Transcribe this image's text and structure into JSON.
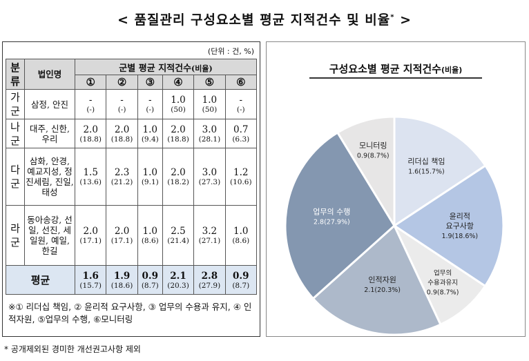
{
  "title": "< 품질관리 구성요소별 평균 지적건수 및 비율",
  "title_mark": "*",
  "title_end": " >",
  "unit": "(단위 : 건, %)",
  "table": {
    "header_group": "분류",
    "header_corp": "법인명",
    "header_span_main": "군별 평균 지적건수",
    "header_span_sub": "(비율)",
    "col_numbers": [
      "①",
      "②",
      "③",
      "④",
      "⑤",
      "⑥"
    ],
    "rows": [
      {
        "group": "가군",
        "corp": "삼정, 안진",
        "values": [
          "-",
          "-",
          "-",
          "1.0",
          "1.0",
          "-"
        ],
        "pcts": [
          "(-)",
          "(-)",
          "(-)",
          "(50)",
          "(50)",
          "(-)"
        ]
      },
      {
        "group": "나군",
        "corp": "대주, 신한, 우리",
        "values": [
          "2.0",
          "2.0",
          "1.0",
          "2.0",
          "3.0",
          "0.7"
        ],
        "pcts": [
          "(18.8)",
          "(18.8)",
          "(9.4)",
          "(18.8)",
          "(28.1)",
          "(6.3)"
        ]
      },
      {
        "group": "다군",
        "corp": "삼화, 안경, 예교지성, 정진세림, 진일, 태성",
        "values": [
          "1.5",
          "2.3",
          "1.0",
          "2.0",
          "3.0",
          "1.2"
        ],
        "pcts": [
          "(13.6)",
          "(21.2)",
          "(9.1)",
          "(18.2)",
          "(27.3)",
          "(10.6)"
        ]
      },
      {
        "group": "라군",
        "corp": "동아송강, 선일, 선진, 세일원, 예일, 한길",
        "values": [
          "2.0",
          "2.0",
          "1.0",
          "2.5",
          "3.2",
          "1.0"
        ],
        "pcts": [
          "(17.1)",
          "(17.1)",
          "(8.6)",
          "(21.4)",
          "(27.1)",
          "(8.6)"
        ]
      }
    ],
    "avg_label": "평균",
    "avg_values": [
      "1.6",
      "1.9",
      "0.9",
      "2.1",
      "2.8",
      "0.9"
    ],
    "avg_pcts": [
      "(15.7)",
      "(18.6)",
      "(8.7)",
      "(20.3)",
      "(27.9)",
      "(8.7)"
    ]
  },
  "footnote": "※① 리더십 책임, ② 윤리적 요구사항, ③ 업무의 수용과 유지, ④ 인적자원, ⑤업무의 수행, ⑥모니터링",
  "bottom_note": "* 공개제외된 경미한 개선권고사항 제외",
  "chart_data": {
    "type": "pie",
    "title": "구성요소별 평균 지적건수",
    "title_suffix": "(비율)",
    "slices": [
      {
        "label": "리더십 책임",
        "value": 1.6,
        "pct": 15.7,
        "text": "1.6(15.7%)",
        "color": "#dce3f0"
      },
      {
        "label": "윤리적 요구사항",
        "value": 1.9,
        "pct": 18.6,
        "text": "1.9(18.6%)",
        "color": "#b4c6e4"
      },
      {
        "label": "업무의 수용과유지",
        "value": 0.9,
        "pct": 8.7,
        "text": "0.9(8.7%)",
        "color": "#ebebeb"
      },
      {
        "label": "인적자원",
        "value": 2.1,
        "pct": 20.3,
        "text": "2.1(20.3%)",
        "color": "#adb9ca"
      },
      {
        "label": "업무의 수행",
        "value": 2.8,
        "pct": 27.9,
        "text": "2.8(27.9%)",
        "color": "#8497b0"
      },
      {
        "label": "모니터링",
        "value": 0.9,
        "pct": 8.7,
        "text": "0.9(8.7%)",
        "color": "#e7e6e6"
      }
    ]
  }
}
